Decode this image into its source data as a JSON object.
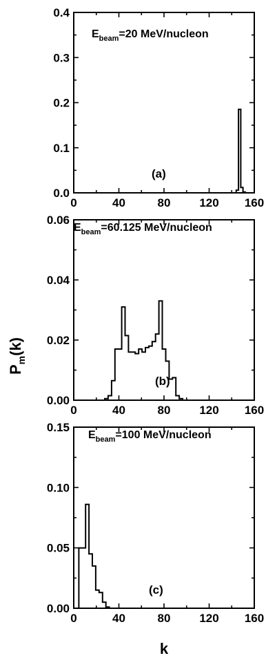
{
  "chart_data": [
    {
      "type": "line",
      "panel_label": "(a)",
      "beam_label": {
        "prefix": "E",
        "subscript": "beam",
        "suffix": "=20 MeV/nucleon"
      },
      "xlim": [
        0,
        160
      ],
      "ylim": [
        0,
        0.4
      ],
      "xticks": [
        "0",
        "40",
        "80",
        "120",
        "160"
      ],
      "yticks": [
        "0.0",
        "0.1",
        "0.2",
        "0.3",
        "0.4"
      ],
      "x": [
        143,
        145,
        147,
        149,
        151,
        153
      ],
      "y": [
        0,
        0.006,
        0.185,
        0.012,
        0.002,
        0
      ]
    },
    {
      "type": "line",
      "panel_label": "(b)",
      "beam_label": {
        "prefix": "E",
        "subscript": "beam",
        "suffix": "=60.125 MeV/nucleon"
      },
      "xlim": [
        0,
        160
      ],
      "ylim": [
        0,
        0.06
      ],
      "xticks": [
        "0",
        "40",
        "80",
        "120",
        "160"
      ],
      "yticks": [
        "0.00",
        "0.02",
        "0.04",
        "0.06"
      ],
      "x": [
        26,
        29,
        32,
        35,
        38,
        41,
        44,
        47,
        50,
        53,
        56,
        59,
        62,
        65,
        68,
        71,
        74,
        77,
        80,
        83,
        86,
        89,
        92,
        95,
        98
      ],
      "y": [
        0,
        0.0005,
        0.0015,
        0.0065,
        0.017,
        0.017,
        0.031,
        0.0215,
        0.016,
        0.016,
        0.0155,
        0.017,
        0.016,
        0.0175,
        0.018,
        0.0195,
        0.022,
        0.033,
        0.017,
        0.013,
        0.007,
        0.0075,
        0.0015,
        0.0005,
        0
      ]
    },
    {
      "type": "line",
      "panel_label": "(c)",
      "beam_label": {
        "prefix": "E",
        "subscript": "beam",
        "suffix": "=100 MeV/nucleon"
      },
      "xlim": [
        0,
        160
      ],
      "ylim": [
        0,
        0.15
      ],
      "xticks": [
        "0",
        "40",
        "80",
        "120",
        "160"
      ],
      "yticks": [
        "0.00",
        "0.05",
        "0.10",
        "0.15"
      ],
      "x": [
        3,
        6,
        9,
        12,
        15,
        18,
        21,
        24,
        27,
        30,
        33
      ],
      "y": [
        0,
        0.05,
        0.05,
        0.086,
        0.045,
        0.035,
        0.015,
        0.013,
        0.005,
        0.001,
        0
      ]
    }
  ],
  "ylabel": {
    "main": "P",
    "subscript": "m",
    "suffix": "(k)"
  },
  "xlabel": "k"
}
